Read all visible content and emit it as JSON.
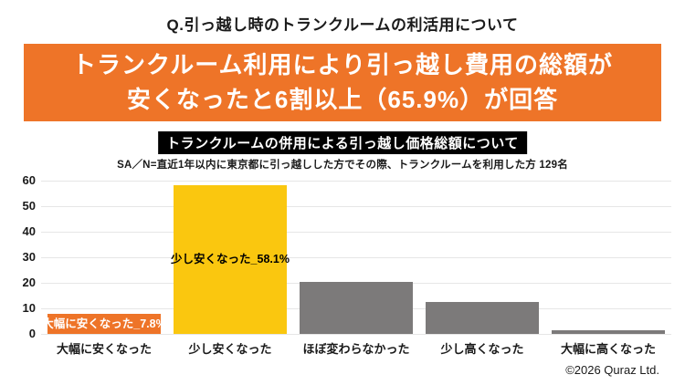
{
  "page": {
    "title": "Q.引っ越し時のトランクルームの利活用について",
    "banner": {
      "line1": "トランクルーム利用により引っ越し費用の総額が",
      "line2": "安くなったと6割以上（65.9%）が回答",
      "bg_color": "#EE7428"
    },
    "chart_header": "トランクルームの併用による引っ越し価格総額について",
    "chart_subtitle": "SA／N=直近1年以内に東京都に引っ越しした方でその際、トランクルームを利用した方 129名",
    "copyright": "©2026 Quraz Ltd."
  },
  "chart_data": {
    "type": "bar",
    "title": "トランクルームの併用による引っ越し価格総額について",
    "categories": [
      "大幅に安くなった",
      "少し安くなった",
      "ほぼ変わらなかった",
      "少し高くなった",
      "大幅に高くなった"
    ],
    "values": [
      7.8,
      58.1,
      20.2,
      12.4,
      1.6
    ],
    "unit": "%",
    "bar_colors": [
      "#EE7428",
      "#FAC70F",
      "#7C7A7A",
      "#7C7A7A",
      "#7C7A7A"
    ],
    "data_labels": [
      {
        "index": 0,
        "text": "大幅に安くなった_7.8%",
        "text_color": "#FFFFFF"
      },
      {
        "index": 1,
        "text": "少し安くなった_58.1%",
        "text_color": "#000000"
      }
    ],
    "ylim": [
      0,
      60
    ],
    "ytick_step": 10,
    "yticks": [
      "0",
      "10",
      "20",
      "30",
      "40",
      "50",
      "60"
    ],
    "grid": true,
    "legend": false
  }
}
